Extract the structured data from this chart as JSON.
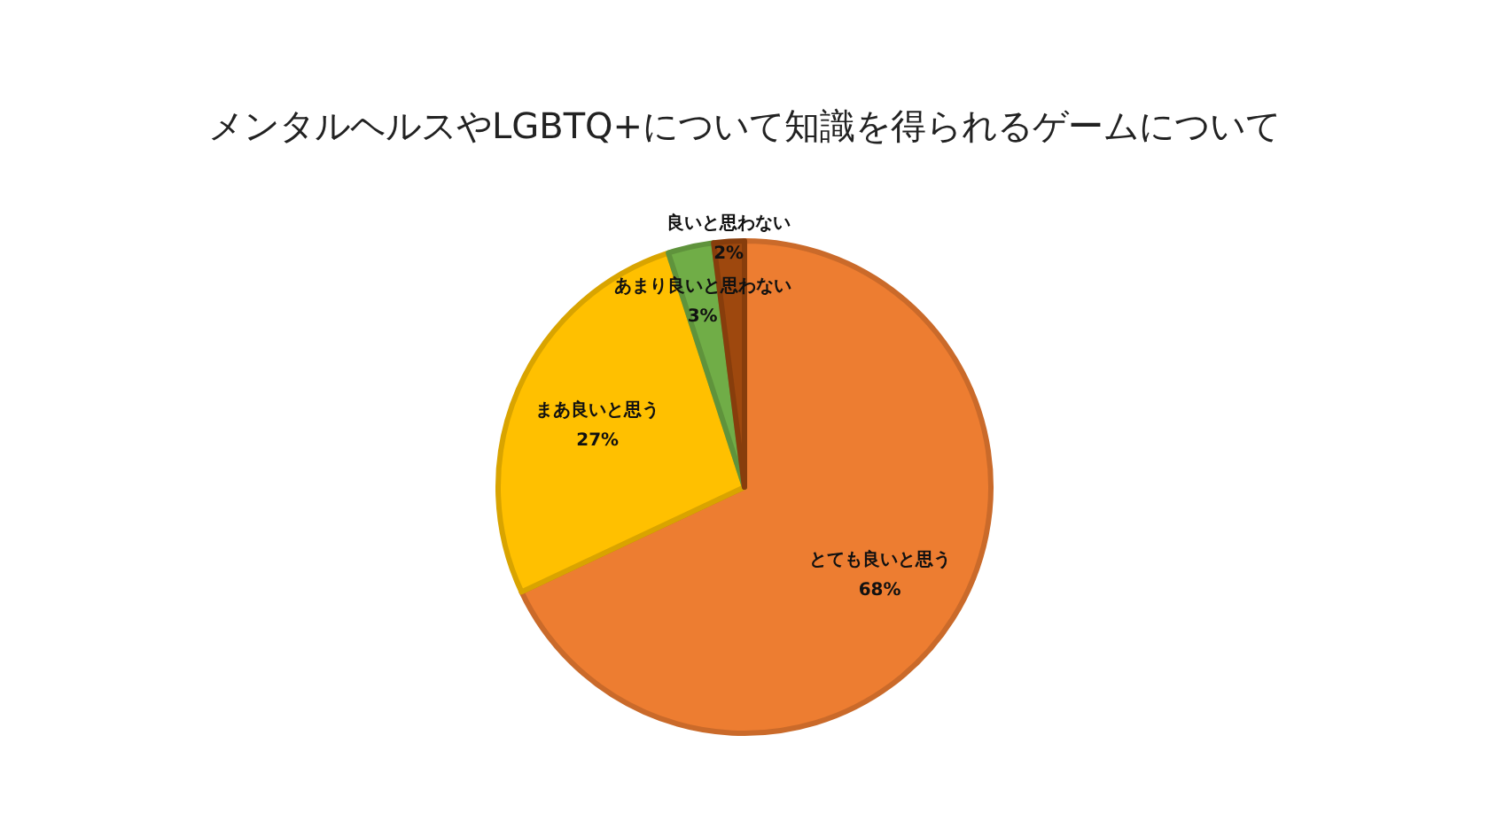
{
  "chart_data": {
    "type": "pie",
    "title": "メンタルヘルスやLGBTQ+について知識を得られるゲームについて",
    "categories": [
      "とても良いと思う",
      "まあ良いと思う",
      "あまり良いと思わない",
      "良いと思わない"
    ],
    "values": [
      68,
      27,
      3,
      2
    ],
    "value_labels": [
      "68%",
      "27%",
      "3%",
      "2%"
    ],
    "colors": [
      "#ed7d31",
      "#ffc000",
      "#70ad47",
      "#9e480e"
    ]
  }
}
